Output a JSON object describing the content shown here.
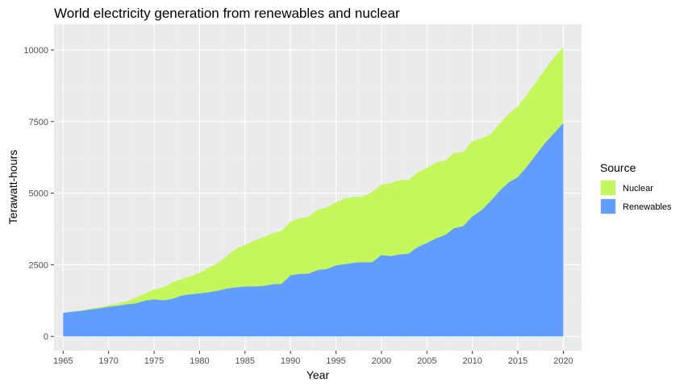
{
  "chart_data": {
    "type": "area",
    "stacked": true,
    "title": "World electricity generation from renewables and nuclear",
    "xlabel": "Year",
    "ylabel": "Terawatt-hours",
    "xlim": [
      1964,
      2022
    ],
    "ylim": [
      -500,
      10900
    ],
    "x_ticks": [
      1965,
      1970,
      1975,
      1980,
      1985,
      1990,
      1995,
      2000,
      2005,
      2010,
      2015,
      2020
    ],
    "y_ticks": [
      0,
      2500,
      5000,
      7500,
      10000
    ],
    "y_tick_labels": [
      "0",
      "2500",
      "5000",
      "7500",
      "10000"
    ],
    "grid": true,
    "legend_title": "Source",
    "legend_position": "right",
    "years": [
      1965,
      1966,
      1967,
      1968,
      1969,
      1970,
      1971,
      1972,
      1973,
      1974,
      1975,
      1976,
      1977,
      1978,
      1979,
      1980,
      1981,
      1982,
      1983,
      1984,
      1985,
      1986,
      1987,
      1988,
      1989,
      1990,
      1991,
      1992,
      1993,
      1994,
      1995,
      1996,
      1997,
      1998,
      1999,
      2000,
      2001,
      2002,
      2003,
      2004,
      2005,
      2006,
      2007,
      2008,
      2009,
      2010,
      2011,
      2012,
      2013,
      2014,
      2015,
      2016,
      2017,
      2018,
      2019,
      2020
    ],
    "series": [
      {
        "name": "Renewables",
        "color": "#619cff",
        "values": [
          820,
          860,
          890,
          940,
          980,
          1030,
          1070,
          1120,
          1150,
          1250,
          1290,
          1260,
          1310,
          1420,
          1470,
          1500,
          1540,
          1590,
          1670,
          1710,
          1740,
          1740,
          1760,
          1820,
          1830,
          2130,
          2180,
          2190,
          2320,
          2350,
          2480,
          2520,
          2570,
          2590,
          2590,
          2840,
          2800,
          2860,
          2890,
          3120,
          3260,
          3420,
          3540,
          3780,
          3850,
          4190,
          4400,
          4720,
          5080,
          5380,
          5560,
          5930,
          6340,
          6750,
          7100,
          7450
        ]
      },
      {
        "name": "Nuclear",
        "color": "#c4f75b",
        "values": [
          10,
          10,
          20,
          30,
          40,
          50,
          80,
          110,
          200,
          250,
          350,
          450,
          570,
          590,
          630,
          720,
          860,
          960,
          1140,
          1350,
          1450,
          1600,
          1700,
          1780,
          1850,
          1870,
          1950,
          1990,
          2100,
          2150,
          2200,
          2300,
          2300,
          2300,
          2450,
          2450,
          2550,
          2600,
          2570,
          2620,
          2620,
          2650,
          2600,
          2630,
          2580,
          2630,
          2500,
          2340,
          2350,
          2390,
          2470,
          2510,
          2540,
          2570,
          2650,
          2630
        ]
      }
    ]
  }
}
